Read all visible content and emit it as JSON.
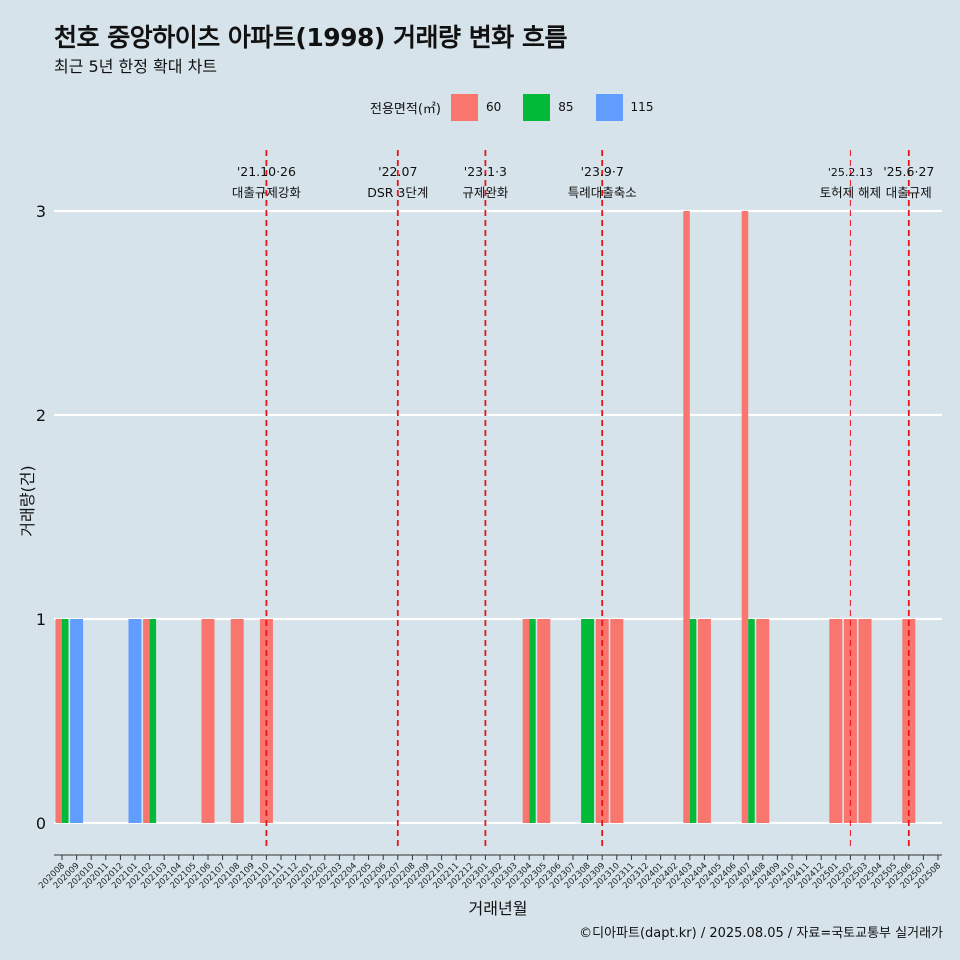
{
  "chart": {
    "title": "천호 중앙하이츠 아파트(1998) 거래량 변화 흐름",
    "subtitle": "최근 5년 한정 확대 차트",
    "caption": "©디아파트(dapt.kr) / 2025.08.05 / 자료=국토교통부 실거래가"
  },
  "legend": {
    "title": "전용면적(㎡)",
    "items": [
      {
        "label": "60",
        "color": "#f8766d"
      },
      {
        "label": "85",
        "color": "#00ba38"
      },
      {
        "label": "115",
        "color": "#619cff"
      }
    ]
  },
  "chart_data": {
    "type": "bar",
    "xlabel": "거래년월",
    "ylabel": "거래량(건)",
    "ylim": [
      0,
      3
    ],
    "yticks": [
      0,
      1,
      2,
      3
    ],
    "grid": true,
    "legend_position": "top",
    "categories": [
      "202008",
      "202009",
      "202010",
      "202011",
      "202012",
      "202101",
      "202102",
      "202103",
      "202104",
      "202105",
      "202106",
      "202107",
      "202108",
      "202109",
      "202110",
      "202111",
      "202112",
      "202201",
      "202202",
      "202203",
      "202204",
      "202205",
      "202206",
      "202207",
      "202208",
      "202209",
      "202210",
      "202211",
      "202212",
      "202301",
      "202302",
      "202303",
      "202304",
      "202305",
      "202306",
      "202307",
      "202308",
      "202309",
      "202310",
      "202311",
      "202312",
      "202401",
      "202402",
      "202403",
      "202404",
      "202405",
      "202406",
      "202407",
      "202408",
      "202409",
      "202410",
      "202411",
      "202412",
      "202501",
      "202502",
      "202503",
      "202504",
      "202505",
      "202506",
      "202507",
      "202508"
    ],
    "series": [
      {
        "name": "60",
        "color": "#f8766d",
        "values": {
          "202008": 1,
          "202102": 1,
          "202106": 1,
          "202108": 1,
          "202110": 1,
          "202304": 1,
          "202305": 1,
          "202309": 1,
          "202310": 1,
          "202403": 3,
          "202404": 1,
          "202407": 3,
          "202408": 1,
          "202501": 1,
          "202502": 1,
          "202503": 1,
          "202506": 1
        }
      },
      {
        "name": "85",
        "color": "#00ba38",
        "values": {
          "202008": 1,
          "202102": 1,
          "202304": 1,
          "202308": 1,
          "202403": 1,
          "202407": 1
        }
      },
      {
        "name": "115",
        "color": "#619cff",
        "values": {
          "202009": 1,
          "202101": 1
        }
      }
    ],
    "annotations": [
      {
        "date": "202110",
        "line1": "'21.10·26",
        "line2": "대출규제강화"
      },
      {
        "date": "202207",
        "line1": "'22.07",
        "line2": "DSR 3단계"
      },
      {
        "date": "202301",
        "line1": "'23.1·3",
        "line2": "규제완화"
      },
      {
        "date": "202309",
        "line1": "'23.9·7",
        "line2": "특례대출축소"
      },
      {
        "date": "202502",
        "line1": "'25.2.13",
        "line2": "토허제 해제",
        "thin": true
      },
      {
        "date": "202506",
        "line1": "'25.6·27",
        "line2": "대출규제"
      }
    ],
    "reference_line_color": "#e8141c"
  }
}
